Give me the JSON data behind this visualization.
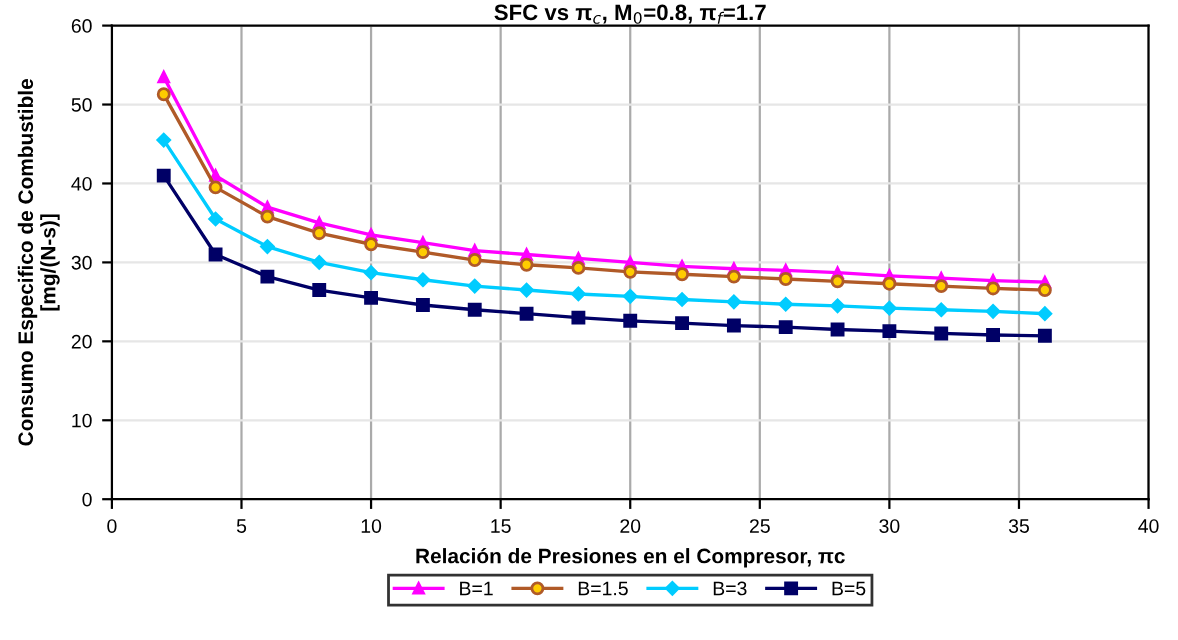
{
  "chart_data": {
    "type": "line",
    "title": "SFC vs π$_{c}$, M$_{0}$=0.8, π$_{f}$=1.7",
    "xlabel": "Relación de Presiones en el Compresor, πc",
    "ylabel": "Consumo Especifico de Combustible\n[mg/(N-s)]",
    "x": [
      2,
      4,
      6,
      8,
      10,
      12,
      14,
      16,
      18,
      20,
      22,
      24,
      26,
      28,
      30,
      32,
      34,
      36
    ],
    "series": [
      {
        "name": "B=1",
        "color": "#ff00ff",
        "marker": "triangle",
        "values": [
          53.5,
          41,
          37,
          35,
          33.5,
          32.5,
          31.5,
          31,
          30.5,
          30,
          29.5,
          29.2,
          29,
          28.7,
          28.3,
          28,
          27.7,
          27.5
        ]
      },
      {
        "name": "B=1.5",
        "color": "#b05a28",
        "marker": "circle",
        "values": [
          51.3,
          39.5,
          35.8,
          33.7,
          32.3,
          31.3,
          30.3,
          29.7,
          29.3,
          28.8,
          28.5,
          28.2,
          27.9,
          27.6,
          27.3,
          27,
          26.7,
          26.5
        ]
      },
      {
        "name": "B=3",
        "color": "#00ccff",
        "marker": "diamond",
        "values": [
          45.5,
          35.5,
          32,
          30,
          28.7,
          27.8,
          27,
          26.5,
          26,
          25.7,
          25.3,
          25,
          24.7,
          24.5,
          24.2,
          24,
          23.8,
          23.5
        ]
      },
      {
        "name": "B=5",
        "color": "#000066",
        "marker": "square",
        "values": [
          41,
          31,
          28.2,
          26.5,
          25.5,
          24.6,
          24,
          23.5,
          23,
          22.6,
          22.3,
          22,
          21.8,
          21.5,
          21.3,
          21,
          20.8,
          20.7
        ]
      }
    ],
    "xlim": [
      0,
      40
    ],
    "xticks": [
      0,
      5,
      10,
      15,
      20,
      25,
      30,
      35,
      40
    ],
    "ylim": [
      0,
      60
    ],
    "yticks": [
      0,
      10,
      20,
      30,
      40,
      50,
      60
    ],
    "grid": true,
    "legend": "bottom",
    "line_style": "solid"
  }
}
